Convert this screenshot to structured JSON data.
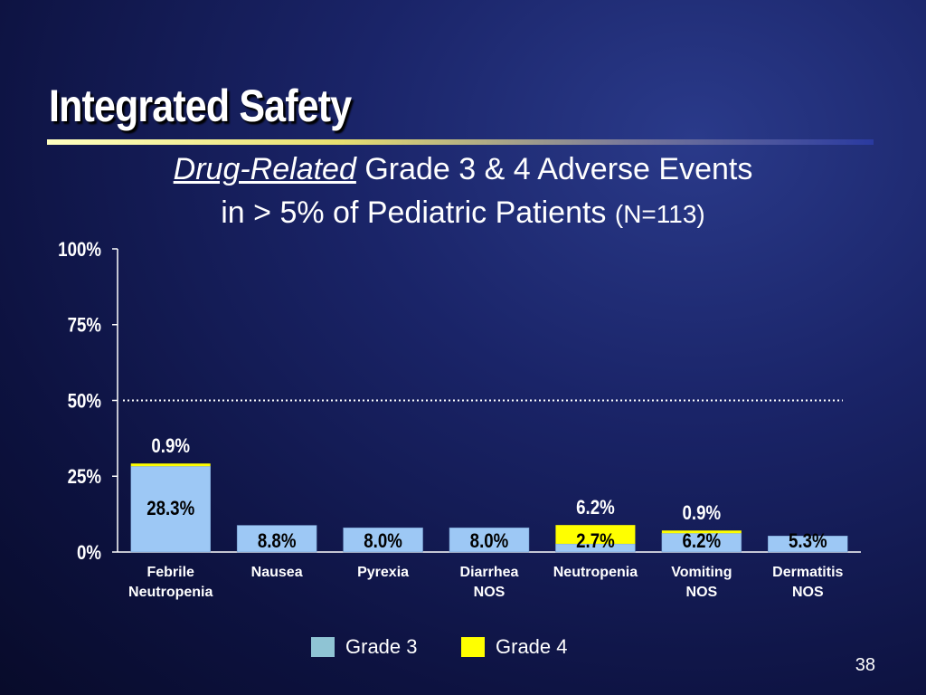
{
  "slide": {
    "title": "Integrated Safety",
    "subtitle_italic": "Drug-Related",
    "subtitle_rest": " Grade 3 & 4 Adverse Events",
    "subtitle_line2": "in > 5% of Pediatric Patients ",
    "subtitle_n": "(N=113)",
    "page_number": "38"
  },
  "colors": {
    "grade3": "#9dc8f5",
    "grade4": "#ffff00",
    "legend_grade3": "#8fc4d4",
    "axis": "#ffffff",
    "reference_line": "#ffffff"
  },
  "chart_data": {
    "type": "bar",
    "stacked": true,
    "categories": [
      [
        "Febrile",
        "Neutropenia"
      ],
      [
        "Nausea"
      ],
      [
        "Pyrexia"
      ],
      [
        "Diarrhea",
        "NOS"
      ],
      [
        "Neutropenia"
      ],
      [
        "Vomiting",
        "NOS"
      ],
      [
        "Dermatitis",
        "NOS"
      ]
    ],
    "series": [
      {
        "name": "Grade 3",
        "values": [
          28.3,
          8.8,
          8.0,
          8.0,
          2.7,
          6.2,
          5.3
        ],
        "labels": [
          "28.3%",
          "8.8%",
          "8.0%",
          "8.0%",
          "2.7%",
          "6.2%",
          "5.3%"
        ]
      },
      {
        "name": "Grade 4",
        "values": [
          0.9,
          0,
          0,
          0,
          6.2,
          0.9,
          0
        ],
        "labels": [
          "0.9%",
          "",
          "",
          "",
          "6.2%",
          "0.9%",
          ""
        ]
      }
    ],
    "ylim": [
      0,
      100
    ],
    "yticks": [
      0,
      25,
      50,
      75,
      100
    ],
    "ytick_labels": [
      "0%",
      "25%",
      "50%",
      "75%",
      "100%"
    ],
    "reference_line": 50,
    "legend": [
      "Grade 3",
      "Grade 4"
    ],
    "legend_position": "bottom"
  }
}
